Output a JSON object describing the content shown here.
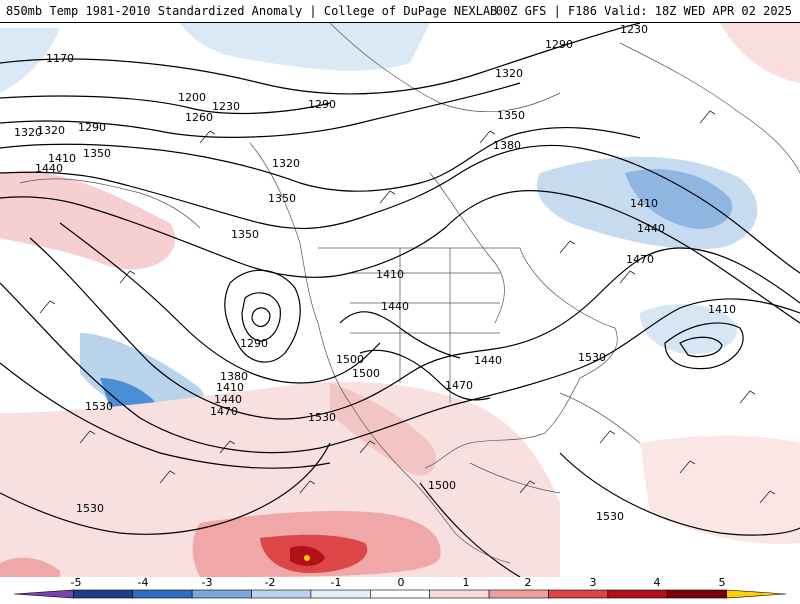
{
  "header": {
    "title": "850mb Temp 1981-2010 Standardized Anomaly | College of DuPage NEXLAB",
    "run_info": "00Z GFS | F186 Valid: 18Z WED APR 02 2025"
  },
  "contour_labels": [
    "1170",
    "1200",
    "1230",
    "1260",
    "1290",
    "1320",
    "1290",
    "1320",
    "1350",
    "1410",
    "1440",
    "1350",
    "1350",
    "1380",
    "1290",
    "1320",
    "1350",
    "1380",
    "1410",
    "1440",
    "1470",
    "1500",
    "1530",
    "1410",
    "1440",
    "1470",
    "1440",
    "1500",
    "1530",
    "1530",
    "1530",
    "1410",
    "1440",
    "1470",
    "1230",
    "1290",
    "1320",
    "1410",
    "1500",
    "1530"
  ],
  "colorbar": {
    "ticks": [
      "-5",
      "-4",
      "-3",
      "-2",
      "-1",
      "0",
      "1",
      "2",
      "3",
      "4",
      "5"
    ],
    "colors": [
      "#7a3fb0",
      "#1f3d8a",
      "#2d6fc2",
      "#79a9d8",
      "#b9d3ec",
      "#e4eef8",
      "#ffffff",
      "#f7d9d9",
      "#ef9e9e",
      "#dd4646",
      "#b3101a",
      "#7a000a",
      "#ffd000"
    ]
  }
}
